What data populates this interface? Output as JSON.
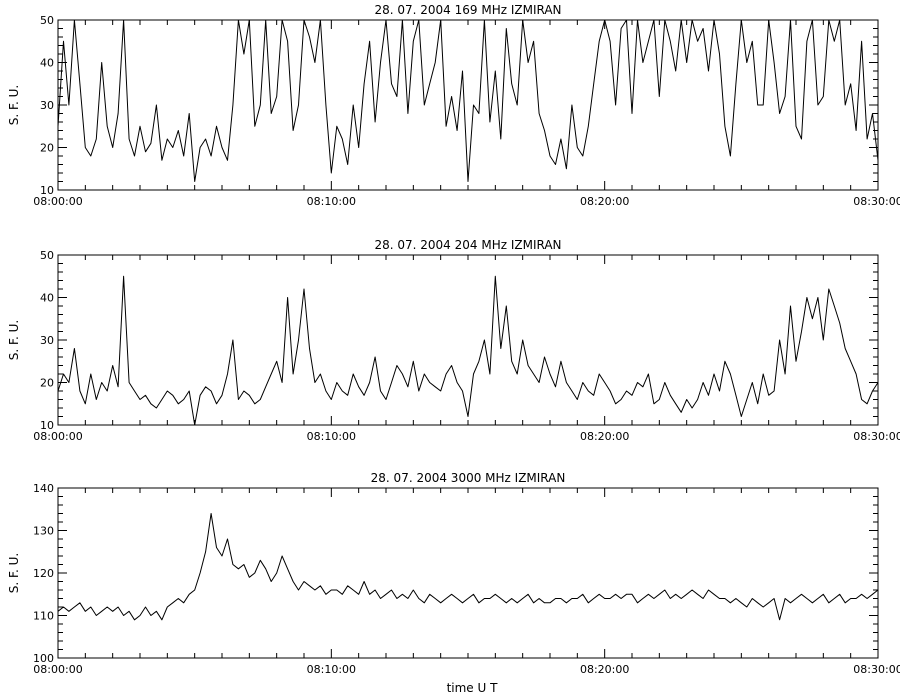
{
  "xlabel": "time  U T",
  "chart_data": [
    {
      "type": "line",
      "title": "28.  07.  2004    169 MHz    IZMIRAN",
      "ylabel": "S. F. U.",
      "xlim_minutes": [
        0,
        30
      ],
      "ylim": [
        10,
        50
      ],
      "yticks": [
        10,
        20,
        30,
        40,
        50
      ],
      "xticks": [
        {
          "minute": 0,
          "label": "08:00:00"
        },
        {
          "minute": 10,
          "label": "08:10:00"
        },
        {
          "minute": 20,
          "label": "08:20:00"
        },
        {
          "minute": 30,
          "label": "08:30:00"
        }
      ],
      "series": [
        {
          "x": [
            0.0,
            0.2,
            0.4,
            0.6,
            0.8,
            1.0,
            1.2,
            1.4,
            1.6,
            1.8,
            2.0,
            2.2,
            2.4,
            2.6,
            2.8,
            3.0,
            3.2,
            3.4,
            3.6,
            3.8,
            4.0,
            4.2,
            4.4,
            4.6,
            4.8,
            5.0,
            5.2,
            5.4,
            5.6,
            5.8,
            6.0,
            6.2,
            6.4,
            6.6,
            6.8,
            7.0,
            7.2,
            7.4,
            7.6,
            7.8,
            8.0,
            8.2,
            8.4,
            8.6,
            8.8,
            9.0,
            9.2,
            9.4,
            9.6,
            9.8,
            10.0,
            10.2,
            10.4,
            10.6,
            10.8,
            11.0,
            11.2,
            11.4,
            11.6,
            11.8,
            12.0,
            12.2,
            12.4,
            12.6,
            12.8,
            13.0,
            13.2,
            13.4,
            13.6,
            13.8,
            14.0,
            14.2,
            14.4,
            14.6,
            14.8,
            15.0,
            15.2,
            15.4,
            15.6,
            15.8,
            16.0,
            16.2,
            16.4,
            16.6,
            16.8,
            17.0,
            17.2,
            17.4,
            17.6,
            17.8,
            18.0,
            18.2,
            18.4,
            18.6,
            18.8,
            19.0,
            19.2,
            19.4,
            19.6,
            19.8,
            20.0,
            20.2,
            20.4,
            20.6,
            20.8,
            21.0,
            21.2,
            21.4,
            21.6,
            21.8,
            22.0,
            22.2,
            22.4,
            22.6,
            22.8,
            23.0,
            23.2,
            23.4,
            23.6,
            23.8,
            24.0,
            24.2,
            24.4,
            24.6,
            24.8,
            25.0,
            25.2,
            25.4,
            25.6,
            25.8,
            26.0,
            26.2,
            26.4,
            26.6,
            26.8,
            27.0,
            27.2,
            27.4,
            27.6,
            27.8,
            28.0,
            28.2,
            28.4,
            28.6,
            28.8,
            29.0,
            29.2,
            29.4,
            29.6,
            29.8,
            30.0
          ],
          "y": [
            25,
            45,
            30,
            50,
            35,
            20,
            18,
            22,
            40,
            25,
            20,
            28,
            50,
            22,
            18,
            25,
            19,
            21,
            30,
            17,
            22,
            20,
            24,
            18,
            28,
            12,
            20,
            22,
            18,
            25,
            20,
            17,
            30,
            50,
            42,
            50,
            25,
            30,
            50,
            28,
            32,
            50,
            45,
            24,
            30,
            50,
            46,
            40,
            50,
            30,
            14,
            25,
            22,
            16,
            30,
            20,
            35,
            45,
            26,
            40,
            50,
            35,
            32,
            50,
            28,
            45,
            50,
            30,
            35,
            40,
            50,
            25,
            32,
            24,
            38,
            12,
            30,
            28,
            50,
            26,
            38,
            22,
            48,
            35,
            30,
            50,
            40,
            45,
            28,
            24,
            18,
            16,
            22,
            15,
            30,
            20,
            18,
            25,
            35,
            45,
            50,
            45,
            30,
            48,
            50,
            28,
            50,
            40,
            45,
            50,
            32,
            50,
            45,
            38,
            50,
            40,
            50,
            45,
            48,
            38,
            50,
            42,
            25,
            18,
            35,
            50,
            40,
            45,
            30,
            30,
            50,
            40,
            28,
            32,
            50,
            25,
            22,
            45,
            50,
            30,
            32,
            50,
            45,
            50,
            30,
            35,
            24,
            45,
            22,
            28,
            17
          ]
        }
      ]
    },
    {
      "type": "line",
      "title": "28.  07.  2004    204 MHz    IZMIRAN",
      "ylabel": "S. F. U.",
      "xlim_minutes": [
        0,
        30
      ],
      "ylim": [
        10,
        50
      ],
      "yticks": [
        10,
        20,
        30,
        40,
        50
      ],
      "xticks": [
        {
          "minute": 0,
          "label": "08:00:00"
        },
        {
          "minute": 10,
          "label": "08:10:00"
        },
        {
          "minute": 20,
          "label": "08:20:00"
        },
        {
          "minute": 30,
          "label": "08:30:00"
        }
      ],
      "series": [
        {
          "x": [
            0.0,
            0.2,
            0.4,
            0.6,
            0.8,
            1.0,
            1.2,
            1.4,
            1.6,
            1.8,
            2.0,
            2.2,
            2.4,
            2.6,
            2.8,
            3.0,
            3.2,
            3.4,
            3.6,
            3.8,
            4.0,
            4.2,
            4.4,
            4.6,
            4.8,
            5.0,
            5.2,
            5.4,
            5.6,
            5.8,
            6.0,
            6.2,
            6.4,
            6.6,
            6.8,
            7.0,
            7.2,
            7.4,
            7.6,
            7.8,
            8.0,
            8.2,
            8.4,
            8.6,
            8.8,
            9.0,
            9.2,
            9.4,
            9.6,
            9.8,
            10.0,
            10.2,
            10.4,
            10.6,
            10.8,
            11.0,
            11.2,
            11.4,
            11.6,
            11.8,
            12.0,
            12.2,
            12.4,
            12.6,
            12.8,
            13.0,
            13.2,
            13.4,
            13.6,
            13.8,
            14.0,
            14.2,
            14.4,
            14.6,
            14.8,
            15.0,
            15.2,
            15.4,
            15.6,
            15.8,
            16.0,
            16.2,
            16.4,
            16.6,
            16.8,
            17.0,
            17.2,
            17.4,
            17.6,
            17.8,
            18.0,
            18.2,
            18.4,
            18.6,
            18.8,
            19.0,
            19.2,
            19.4,
            19.6,
            19.8,
            20.0,
            20.2,
            20.4,
            20.6,
            20.8,
            21.0,
            21.2,
            21.4,
            21.6,
            21.8,
            22.0,
            22.2,
            22.4,
            22.6,
            22.8,
            23.0,
            23.2,
            23.4,
            23.6,
            23.8,
            24.0,
            24.2,
            24.4,
            24.6,
            24.8,
            25.0,
            25.2,
            25.4,
            25.6,
            25.8,
            26.0,
            26.2,
            26.4,
            26.6,
            26.8,
            27.0,
            27.2,
            27.4,
            27.6,
            27.8,
            28.0,
            28.2,
            28.4,
            28.6,
            28.8,
            29.0,
            29.2,
            29.4,
            29.6,
            29.8,
            30.0
          ],
          "y": [
            18,
            22,
            20,
            28,
            18,
            15,
            22,
            16,
            20,
            18,
            24,
            19,
            45,
            20,
            18,
            16,
            17,
            15,
            14,
            16,
            18,
            17,
            15,
            16,
            18,
            10,
            17,
            19,
            18,
            15,
            17,
            22,
            30,
            16,
            18,
            17,
            15,
            16,
            19,
            22,
            25,
            20,
            40,
            22,
            30,
            42,
            28,
            20,
            22,
            18,
            16,
            20,
            18,
            17,
            22,
            19,
            17,
            20,
            26,
            18,
            16,
            20,
            24,
            22,
            19,
            25,
            18,
            22,
            20,
            19,
            18,
            22,
            24,
            20,
            18,
            12,
            22,
            25,
            30,
            22,
            45,
            28,
            38,
            25,
            22,
            30,
            24,
            22,
            20,
            26,
            22,
            19,
            25,
            20,
            18,
            16,
            20,
            18,
            17,
            22,
            20,
            18,
            15,
            16,
            18,
            17,
            20,
            19,
            22,
            15,
            16,
            20,
            17,
            15,
            13,
            16,
            14,
            16,
            20,
            17,
            22,
            18,
            25,
            22,
            17,
            12,
            16,
            20,
            15,
            22,
            17,
            18,
            30,
            22,
            38,
            25,
            32,
            40,
            35,
            40,
            30,
            42,
            38,
            34,
            28,
            25,
            22,
            16,
            15,
            18,
            20
          ]
        }
      ]
    },
    {
      "type": "line",
      "title": "28.  07.  2004    3000 MHz    IZMIRAN",
      "ylabel": "S. F. U.",
      "xlim_minutes": [
        0,
        30
      ],
      "ylim": [
        100,
        140
      ],
      "yticks": [
        100,
        110,
        120,
        130,
        140
      ],
      "xticks": [
        {
          "minute": 0,
          "label": "08:00:00"
        },
        {
          "minute": 10,
          "label": "08:10:00"
        },
        {
          "minute": 20,
          "label": "08:20:00"
        },
        {
          "minute": 30,
          "label": "08:30:00"
        }
      ],
      "series": [
        {
          "x": [
            0.0,
            0.2,
            0.4,
            0.6,
            0.8,
            1.0,
            1.2,
            1.4,
            1.6,
            1.8,
            2.0,
            2.2,
            2.4,
            2.6,
            2.8,
            3.0,
            3.2,
            3.4,
            3.6,
            3.8,
            4.0,
            4.2,
            4.4,
            4.6,
            4.8,
            5.0,
            5.2,
            5.4,
            5.6,
            5.8,
            6.0,
            6.2,
            6.4,
            6.6,
            6.8,
            7.0,
            7.2,
            7.4,
            7.6,
            7.8,
            8.0,
            8.2,
            8.4,
            8.6,
            8.8,
            9.0,
            9.2,
            9.4,
            9.6,
            9.8,
            10.0,
            10.2,
            10.4,
            10.6,
            10.8,
            11.0,
            11.2,
            11.4,
            11.6,
            11.8,
            12.0,
            12.2,
            12.4,
            12.6,
            12.8,
            13.0,
            13.2,
            13.4,
            13.6,
            13.8,
            14.0,
            14.2,
            14.4,
            14.6,
            14.8,
            15.0,
            15.2,
            15.4,
            15.6,
            15.8,
            16.0,
            16.2,
            16.4,
            16.6,
            16.8,
            17.0,
            17.2,
            17.4,
            17.6,
            17.8,
            18.0,
            18.2,
            18.4,
            18.6,
            18.8,
            19.0,
            19.2,
            19.4,
            19.6,
            19.8,
            20.0,
            20.2,
            20.4,
            20.6,
            20.8,
            21.0,
            21.2,
            21.4,
            21.6,
            21.8,
            22.0,
            22.2,
            22.4,
            22.6,
            22.8,
            23.0,
            23.2,
            23.4,
            23.6,
            23.8,
            24.0,
            24.2,
            24.4,
            24.6,
            24.8,
            25.0,
            25.2,
            25.4,
            25.6,
            25.8,
            26.0,
            26.2,
            26.4,
            26.6,
            26.8,
            27.0,
            27.2,
            27.4,
            27.6,
            27.8,
            28.0,
            28.2,
            28.4,
            28.6,
            28.8,
            29.0,
            29.2,
            29.4,
            29.6,
            29.8,
            30.0
          ],
          "y": [
            111,
            112,
            111,
            112,
            113,
            111,
            112,
            110,
            111,
            112,
            111,
            112,
            110,
            111,
            109,
            110,
            112,
            110,
            111,
            109,
            112,
            113,
            114,
            113,
            115,
            116,
            120,
            125,
            134,
            126,
            124,
            128,
            122,
            121,
            122,
            119,
            120,
            123,
            121,
            118,
            120,
            124,
            121,
            118,
            116,
            118,
            117,
            116,
            117,
            115,
            116,
            116,
            115,
            117,
            116,
            115,
            118,
            115,
            116,
            114,
            115,
            116,
            114,
            115,
            114,
            116,
            114,
            113,
            115,
            114,
            113,
            114,
            115,
            114,
            113,
            114,
            115,
            113,
            114,
            114,
            115,
            114,
            113,
            114,
            113,
            114,
            115,
            113,
            114,
            113,
            113,
            114,
            114,
            113,
            114,
            114,
            115,
            113,
            114,
            115,
            114,
            114,
            115,
            114,
            115,
            115,
            113,
            114,
            115,
            114,
            115,
            116,
            114,
            115,
            114,
            115,
            116,
            115,
            114,
            116,
            115,
            114,
            114,
            113,
            114,
            113,
            112,
            114,
            113,
            112,
            113,
            114,
            109,
            114,
            113,
            114,
            115,
            114,
            113,
            114,
            115,
            113,
            114,
            115,
            113,
            114,
            114,
            115,
            114,
            115,
            116
          ]
        }
      ]
    }
  ]
}
